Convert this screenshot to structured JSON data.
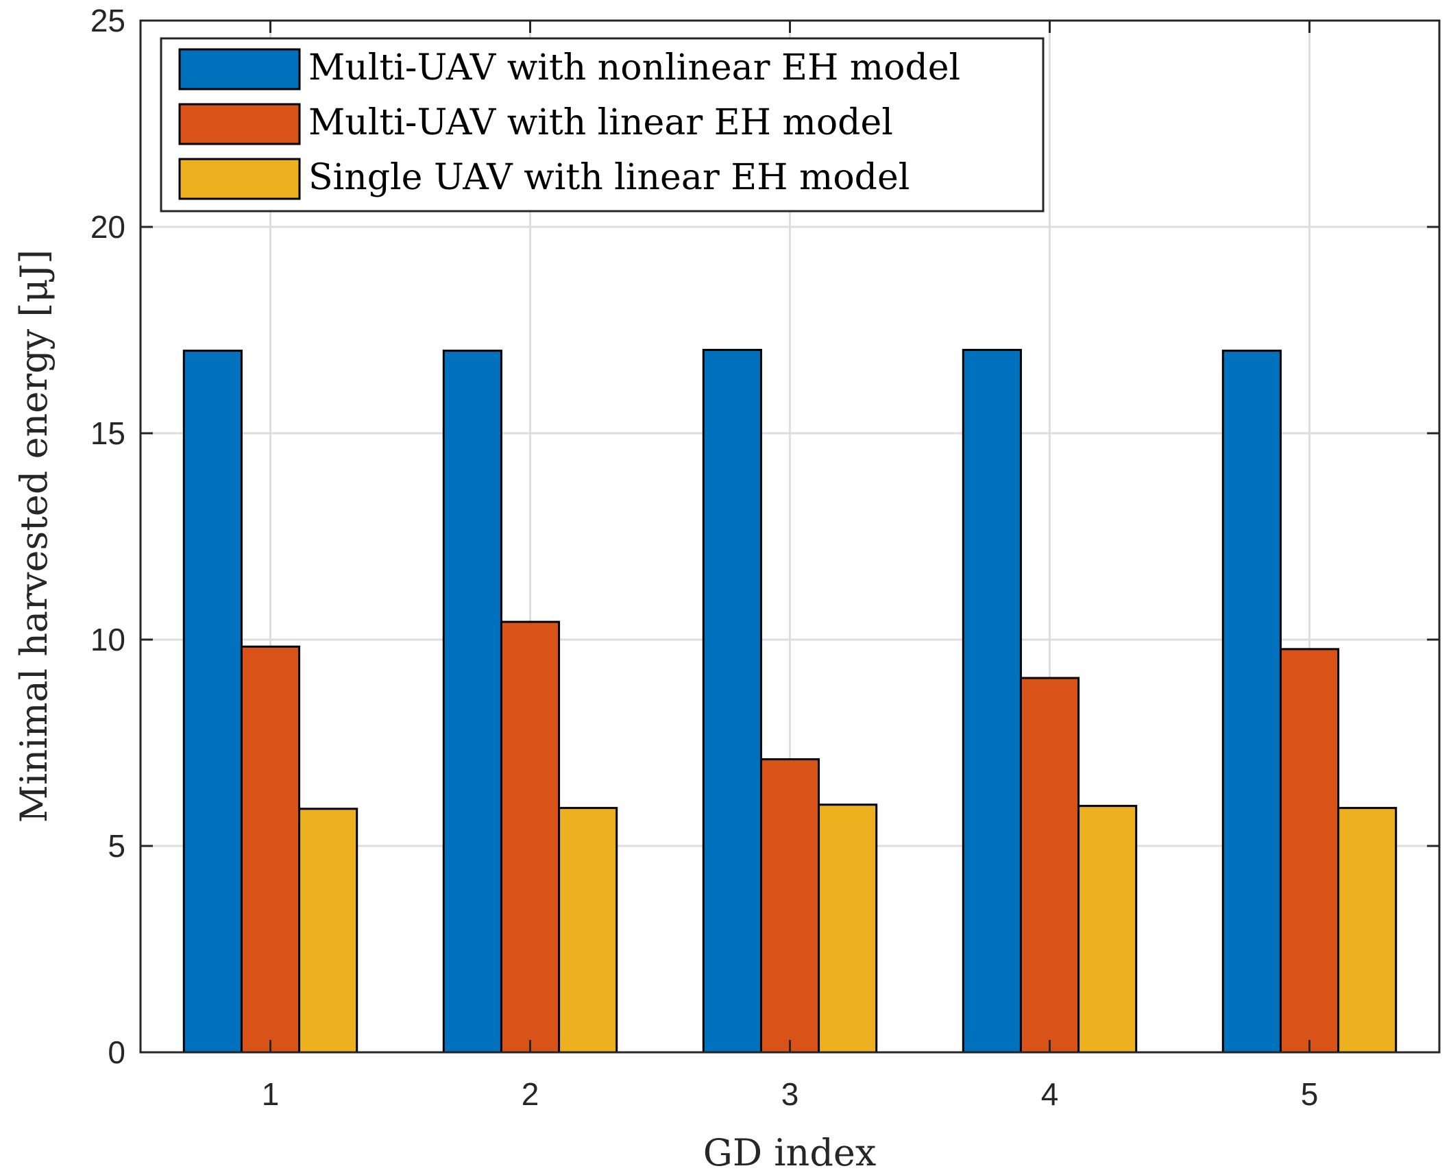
{
  "chart_data": {
    "type": "bar",
    "title": "",
    "xlabel": "GD index",
    "ylabel": "Minimal harvested energy [μJ]",
    "categories": [
      "1",
      "2",
      "3",
      "4",
      "5"
    ],
    "ylim": [
      0,
      25
    ],
    "yticks": [
      0,
      5,
      10,
      15,
      20,
      25
    ],
    "grid": true,
    "legend_position": "top-left",
    "series": [
      {
        "name": "Multi-UAV with nonlinear EH model",
        "color": "#0072BD",
        "values": [
          17.0,
          17.0,
          17.02,
          17.02,
          17.0
        ]
      },
      {
        "name": "Multi-UAV with linear EH model",
        "color": "#D95319",
        "values": [
          9.83,
          10.43,
          7.1,
          9.07,
          9.77
        ]
      },
      {
        "name": "Single UAV with linear EH model",
        "color": "#EDB120",
        "values": [
          5.9,
          5.92,
          6.0,
          5.97,
          5.92
        ]
      }
    ]
  }
}
